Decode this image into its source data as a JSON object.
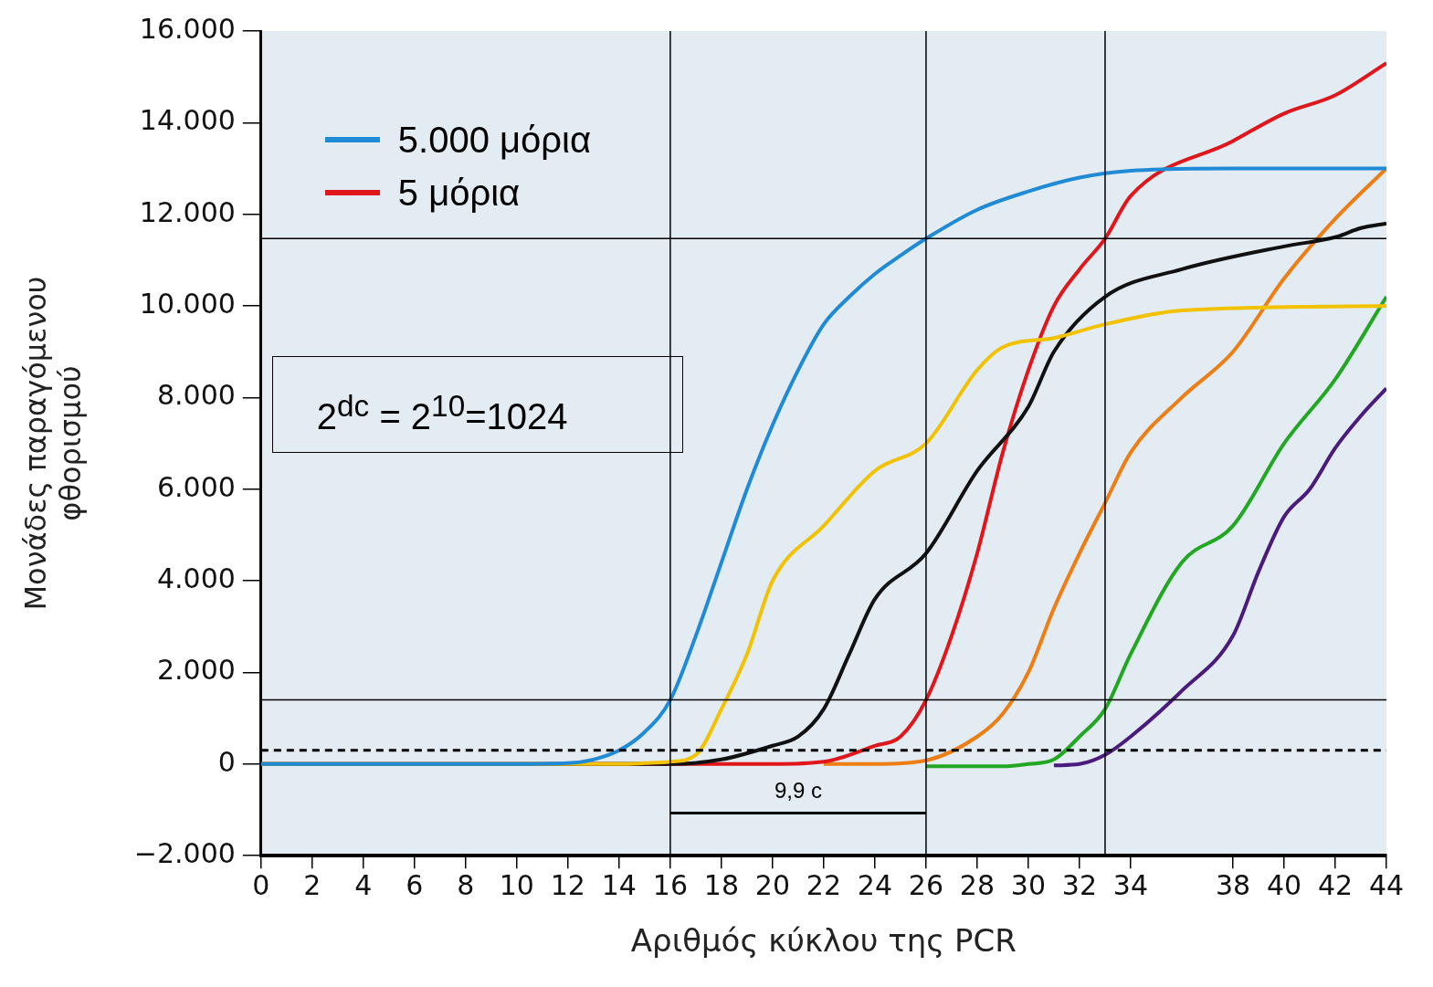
{
  "chart_data": {
    "type": "line",
    "xlabel": "Αριθμός κύκλου της PCR",
    "ylabel": "Μονάδες παραγόμενου\nφθορισμού",
    "xlim": [
      0,
      44
    ],
    "xticks": [
      0,
      2,
      4,
      6,
      8,
      10,
      12,
      14,
      16,
      18,
      20,
      22,
      24,
      26,
      28,
      30,
      32,
      34,
      38,
      40,
      42,
      44
    ],
    "ylim": [
      -2000,
      16000
    ],
    "yticks": [
      {
        "value": -2000,
        "label": "−2.000"
      },
      0,
      {
        "value": 2000,
        "label": "2.000"
      },
      {
        "value": 4000,
        "label": "4.000"
      },
      {
        "value": 6000,
        "label": "6.000"
      },
      {
        "value": 8000,
        "label": "8.000"
      },
      {
        "value": 10000,
        "label": "10.000"
      },
      {
        "value": 12000,
        "label": "12.000"
      },
      {
        "value": 14000,
        "label": "14.000"
      },
      {
        "value": 16000,
        "label": "16.000"
      }
    ],
    "legend": "top left",
    "marker": "none",
    "series": [
      {
        "name": "5.000 μόρια",
        "color": "#1f8ad6",
        "x": [
          0,
          10,
          12,
          13,
          14,
          15,
          16,
          17,
          18,
          19,
          20,
          21,
          22,
          23,
          24,
          25,
          26,
          28,
          30,
          32,
          34,
          38,
          44
        ],
        "values": [
          0,
          0,
          20,
          100,
          300,
          700,
          1400,
          2800,
          4400,
          6000,
          7400,
          8600,
          9600,
          10200,
          10700,
          11100,
          11470,
          12100,
          12500,
          12800,
          12950,
          13000,
          13000
        ]
      },
      {
        "color": "#f2c200",
        "x": [
          0,
          14,
          15,
          16,
          17,
          18,
          19,
          20,
          22,
          24,
          26,
          28,
          29,
          31,
          33,
          36,
          44
        ],
        "values": [
          0,
          0,
          20,
          50,
          200,
          1200,
          2400,
          4000,
          5200,
          6400,
          7000,
          8600,
          9100,
          9300,
          9600,
          9900,
          10000
        ]
      },
      {
        "color": "#111111",
        "x": [
          0,
          16,
          18,
          20,
          21,
          22,
          23,
          24,
          26,
          28,
          30,
          31,
          33,
          36,
          40,
          42,
          43,
          44
        ],
        "values": [
          0,
          0,
          100,
          400,
          600,
          1200,
          2400,
          3600,
          4600,
          6400,
          7800,
          9000,
          10200,
          10800,
          11300,
          11500,
          11700,
          11800
        ]
      },
      {
        "name": "5 μόρια",
        "color": "#e0161b",
        "x": [
          0,
          20,
          22,
          24,
          25,
          26,
          27,
          28,
          29,
          30,
          31,
          32,
          33,
          34,
          38,
          40,
          42,
          44
        ],
        "values": [
          0,
          0,
          50,
          400,
          600,
          1400,
          2800,
          4600,
          6800,
          8600,
          10000,
          10800,
          11470,
          12400,
          13600,
          14200,
          14600,
          15300
        ]
      },
      {
        "color": "#ee7d14",
        "x": [
          22,
          24,
          26,
          28,
          29,
          30,
          31,
          32,
          33,
          34,
          36,
          38,
          40,
          42,
          44
        ],
        "values": [
          0,
          0,
          80,
          600,
          1100,
          2000,
          3400,
          4600,
          5700,
          6800,
          8000,
          9000,
          10600,
          11900,
          13000
        ]
      },
      {
        "color": "#22a722",
        "x": [
          26,
          28,
          29,
          30,
          31,
          32,
          33,
          34,
          36,
          38,
          40,
          42,
          44
        ],
        "values": [
          -50,
          -50,
          -50,
          0,
          100,
          600,
          1200,
          2400,
          4400,
          5200,
          7000,
          8400,
          10200
        ]
      },
      {
        "color": "#4a1a7c",
        "x": [
          31,
          32,
          33,
          34,
          36,
          38,
          39,
          40,
          41,
          42,
          43,
          44
        ],
        "values": [
          -30,
          0,
          200,
          600,
          1600,
          2800,
          4200,
          5400,
          6000,
          6900,
          7600,
          8200
        ]
      }
    ],
    "ref_lines": [
      {
        "axis": "y",
        "value": 11470
      },
      {
        "axis": "y",
        "value": 1400
      },
      {
        "axis": "y",
        "value": 300,
        "line_style": "dashed"
      },
      {
        "axis": "x",
        "value": 16
      },
      {
        "axis": "x",
        "value": 26
      },
      {
        "axis": "x",
        "value": 33
      }
    ],
    "annotations": [
      "9,9 c",
      "2$^{dc}$ = 2$^{10}$=1024"
    ]
  }
}
